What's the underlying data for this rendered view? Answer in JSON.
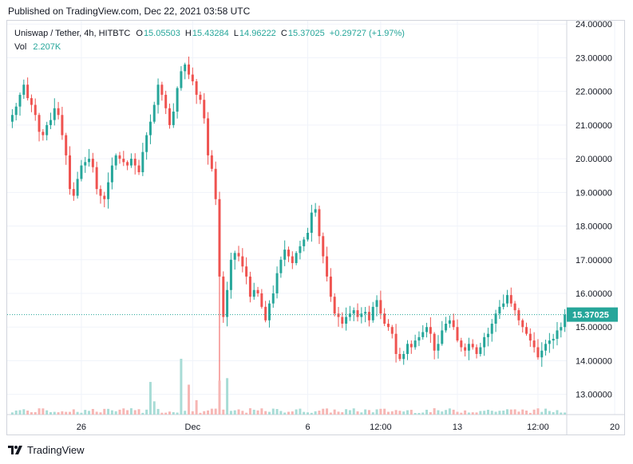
{
  "published": "Published on TradingView.com, Dec 22, 2021 03:58 UTC",
  "legend": {
    "symbol": "Uniswap / Tether, 4h, HITBTC",
    "open_label": "O",
    "open": "15.05503",
    "high_label": "H",
    "high": "15.43284",
    "low_label": "L",
    "low": "14.96222",
    "close_label": "C",
    "close": "15.37025",
    "change": "+0.29727 (+1.97%)",
    "vol_label": "Vol",
    "vol": "2.207K"
  },
  "footer": {
    "brand": "TradingView",
    "logo_icon": "tradingview-logo-icon"
  },
  "colors": {
    "up": "#26a69a",
    "down": "#ef5350",
    "up_vol": "#a8dcd6",
    "down_vol": "#f6b6b4",
    "grid": "#f0f3fa",
    "last_price": "#26a69a"
  },
  "chart_data": {
    "type": "candlestick",
    "y_range": [
      12.4,
      24.1
    ],
    "y_ticks": [
      "24.00000",
      "23.00000",
      "22.00000",
      "21.00000",
      "20.00000",
      "19.00000",
      "18.00000",
      "17.00000",
      "16.00000",
      "15.00000",
      "14.00000",
      "13.00000"
    ],
    "x_ticks": [
      {
        "label": "26",
        "index": 18
      },
      {
        "label": "Dec",
        "index": 47
      },
      {
        "label": "6",
        "index": 77
      },
      {
        "label": "12:00",
        "index": 96
      },
      {
        "label": "13",
        "index": 116
      },
      {
        "label": "12:00",
        "index": 137
      },
      {
        "label": "20",
        "index": 157
      }
    ],
    "last_price": "15.37025",
    "last_price_value": 15.37025,
    "grid": true,
    "close": [
      21.3,
      21.55,
      21.9,
      22.2,
      21.8,
      21.6,
      21.3,
      20.8,
      20.7,
      21.0,
      21.15,
      21.5,
      21.3,
      20.7,
      20.1,
      19.1,
      18.9,
      19.4,
      19.8,
      19.9,
      20.0,
      19.75,
      19.1,
      18.9,
      18.8,
      19.3,
      19.8,
      20.1,
      20.0,
      19.9,
      19.8,
      20.0,
      19.8,
      19.6,
      20.2,
      20.7,
      21.1,
      21.6,
      22.2,
      21.9,
      21.5,
      21.0,
      21.4,
      22.1,
      22.6,
      22.8,
      22.5,
      22.3,
      21.9,
      21.75,
      21.2,
      20.1,
      19.7,
      18.8,
      16.5,
      15.3,
      16.1,
      17.0,
      17.2,
      17.1,
      16.8,
      16.5,
      15.9,
      16.1,
      16.0,
      15.6,
      15.2,
      15.7,
      16.0,
      16.6,
      17.0,
      17.3,
      17.1,
      16.9,
      17.2,
      17.4,
      17.6,
      17.8,
      18.4,
      18.5,
      17.7,
      17.1,
      16.5,
      15.9,
      15.4,
      15.3,
      15.1,
      15.3,
      15.4,
      15.5,
      15.3,
      15.4,
      15.45,
      15.2,
      15.6,
      15.8,
      15.4,
      15.1,
      15.0,
      14.8,
      14.2,
      14.05,
      14.2,
      14.5,
      14.4,
      14.6,
      14.7,
      14.85,
      15.0,
      14.8,
      14.3,
      14.5,
      14.9,
      15.1,
      15.2,
      15.0,
      14.6,
      14.4,
      14.3,
      14.5,
      14.4,
      14.2,
      14.4,
      14.7,
      14.8,
      15.1,
      15.4,
      15.6,
      15.7,
      15.95,
      15.7,
      15.5,
      15.2,
      15.0,
      14.8,
      14.6,
      14.4,
      14.1,
      14.3,
      14.5,
      14.6,
      14.65,
      14.9,
      15.0,
      15.37
    ]
  }
}
